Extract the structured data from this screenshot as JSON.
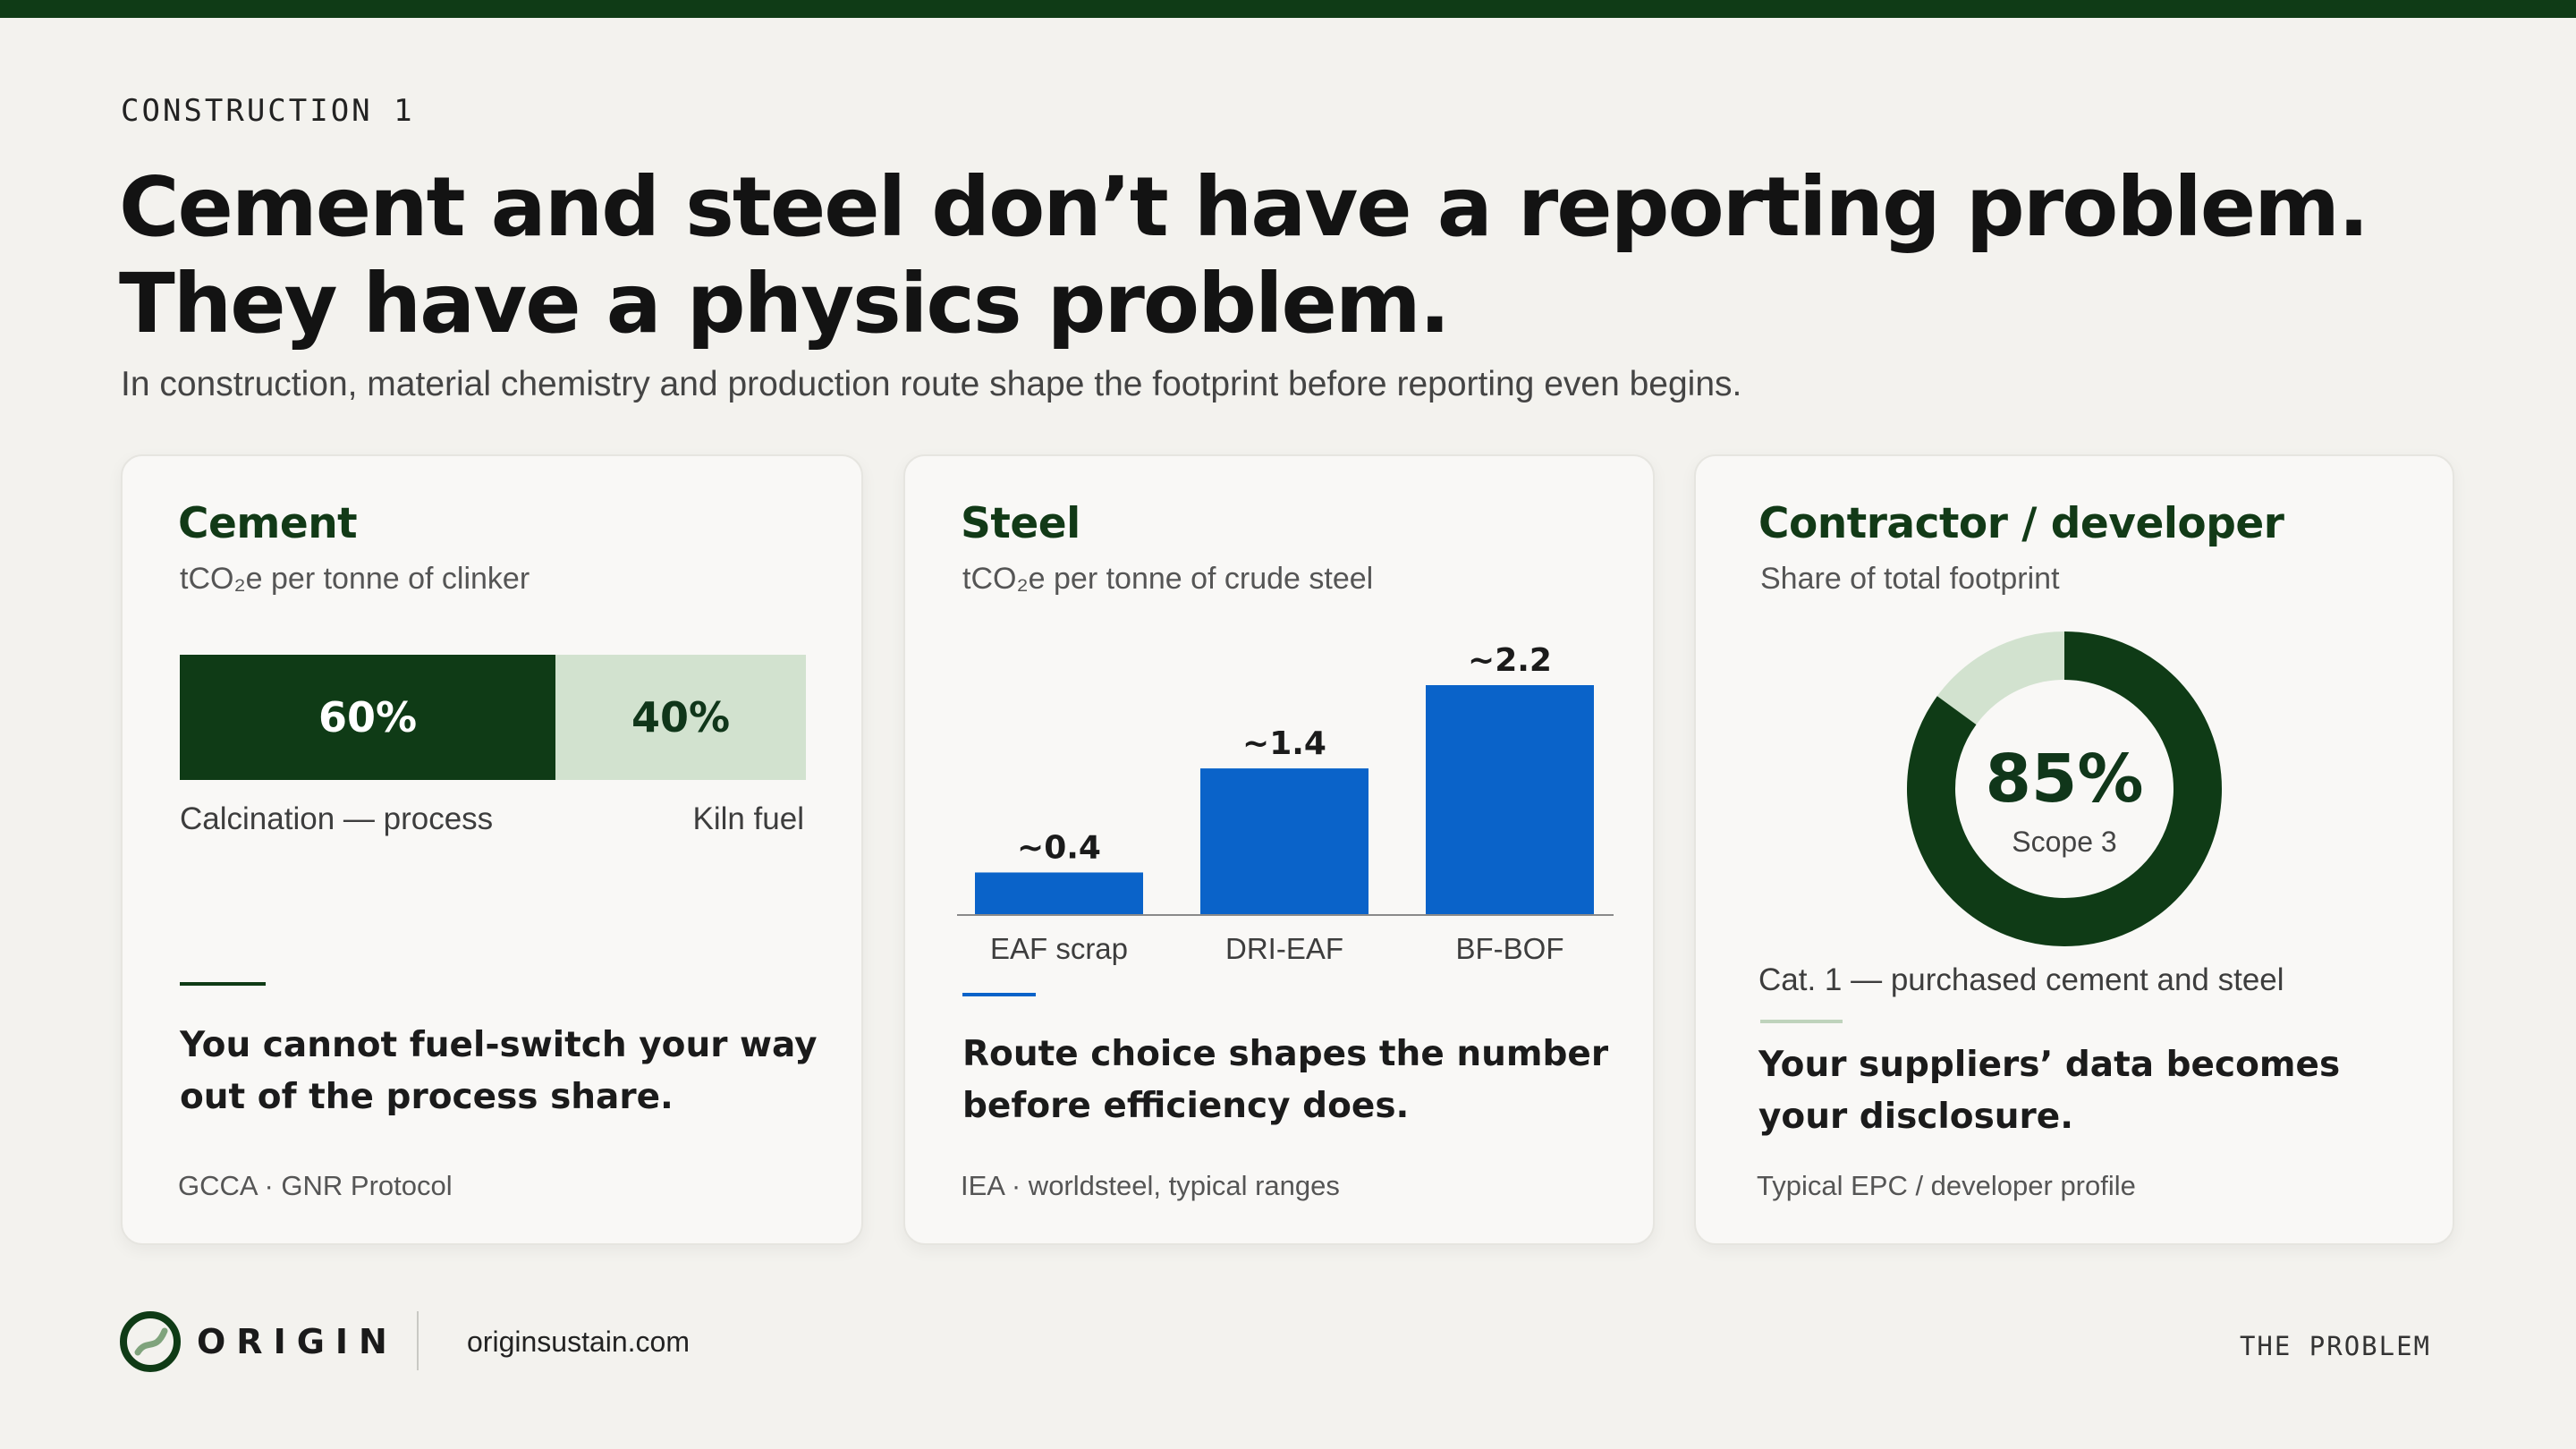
{
  "eyebrow": "CONSTRUCTION 1",
  "title_line1": "Cement and steel don’t have a reporting problem.",
  "title_line2": "They have a physics problem.",
  "subtitle": "In construction, material chemistry and production route shape the footprint before reporting even begins.",
  "colors": {
    "accent_green": "#0f3b16",
    "light_green": "#d2e2cf",
    "steel_blue": "#0a63c9"
  },
  "cement": {
    "title": "Cement",
    "unit": "tCO₂e per tonne of clinker",
    "takeaway_line1": "You cannot fuel-switch your way",
    "takeaway_line2": "out of the process share.",
    "source": "GCCA · GNR Protocol"
  },
  "steel": {
    "title": "Steel",
    "unit": "tCO₂e per tonne of crude steel",
    "takeaway_line1": "Route choice shapes the number",
    "takeaway_line2": "before efficiency does.",
    "source": "IEA · worldsteel, typical ranges"
  },
  "contractor": {
    "title": "Contractor / developer",
    "unit": "Share of total footprint",
    "category": "Cat. 1 — purchased cement and steel",
    "takeaway_line1": "Your suppliers’ data becomes",
    "takeaway_line2": "your disclosure.",
    "source": "Typical EPC / developer profile"
  },
  "chart_data": [
    {
      "type": "bar",
      "orientation": "horizontal-stacked",
      "title": "Cement",
      "unit": "tCO₂e per tonne of clinker",
      "categories": [
        "Calcination — process",
        "Kiln fuel"
      ],
      "values": [
        60,
        40
      ],
      "labels": [
        "60%",
        "40%"
      ]
    },
    {
      "type": "bar",
      "title": "Steel",
      "unit": "tCO₂e per tonne of crude steel",
      "categories": [
        "EAF scrap",
        "DRI-EAF",
        "BF-BOF"
      ],
      "values": [
        0.4,
        1.4,
        2.2
      ],
      "labels": [
        "~0.4",
        "~1.4",
        "~2.2"
      ],
      "ylim": [
        0,
        2.2
      ]
    },
    {
      "type": "pie",
      "title": "Contractor / developer",
      "unit": "Share of total footprint",
      "slices": [
        {
          "label": "Scope 3",
          "value": 85
        },
        {
          "label": "",
          "value": 15
        }
      ],
      "center_value": "85%",
      "center_label": "Scope 3"
    }
  ],
  "footer": {
    "brand": "ORIGIN",
    "website": "originsustain.com",
    "section": "THE PROBLEM"
  }
}
